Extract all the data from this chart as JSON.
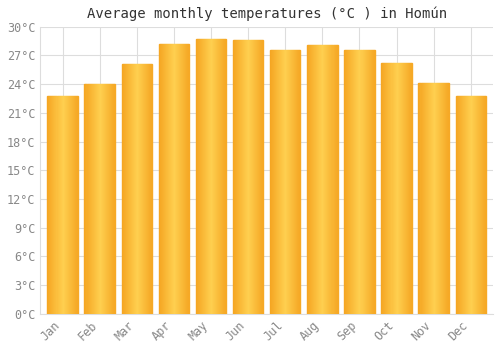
{
  "title": "Average monthly temperatures (°C ) in Homún",
  "months": [
    "Jan",
    "Feb",
    "Mar",
    "Apr",
    "May",
    "Jun",
    "Jul",
    "Aug",
    "Sep",
    "Oct",
    "Nov",
    "Dec"
  ],
  "temperatures": [
    22.8,
    24.0,
    26.1,
    28.2,
    28.7,
    28.6,
    27.6,
    28.1,
    27.6,
    26.2,
    24.1,
    22.8
  ],
  "bar_color_left": "#F5A623",
  "bar_color_center": "#FFD050",
  "bar_color_right": "#E8960A",
  "background_color": "#FFFFFF",
  "grid_color": "#DDDDDD",
  "ylim": [
    0,
    30
  ],
  "yticks": [
    0,
    3,
    6,
    9,
    12,
    15,
    18,
    21,
    24,
    27,
    30
  ],
  "ylabel_suffix": "°C",
  "title_fontsize": 10,
  "tick_fontsize": 8.5,
  "tick_color": "#888888",
  "title_color": "#333333"
}
